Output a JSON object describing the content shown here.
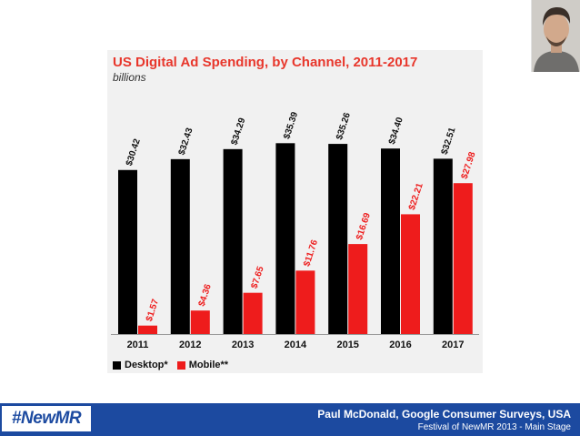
{
  "speaker_photo": {
    "alt": "speaker headshot"
  },
  "chart_data": {
    "type": "bar",
    "title": "US Digital Ad Spending, by Channel, 2011-2017",
    "subtitle": "billions",
    "xlabel": "",
    "ylabel": "",
    "categories": [
      "2011",
      "2012",
      "2013",
      "2014",
      "2015",
      "2016",
      "2017"
    ],
    "series": [
      {
        "name": "Desktop*",
        "color": "#000000",
        "values": [
          30.42,
          32.43,
          34.29,
          35.39,
          35.26,
          34.4,
          32.51
        ],
        "labels": [
          "$30.42",
          "$32.43",
          "$34.29",
          "$35.39",
          "$35.26",
          "$34.40",
          "$32.51"
        ]
      },
      {
        "name": "Mobile**",
        "color": "#ee1c1c",
        "values": [
          1.57,
          4.36,
          7.65,
          11.76,
          16.69,
          22.21,
          27.98
        ],
        "labels": [
          "$1.57",
          "$4.36",
          "$7.65",
          "$11.76",
          "$16.69",
          "$22.21",
          "$27.98"
        ]
      }
    ],
    "ylim": [
      0,
      40
    ],
    "grid": false,
    "legend_position": "bottom-left"
  },
  "footer": {
    "logo": "#NewMR",
    "speaker": "Paul McDonald, Google Consumer Surveys, USA",
    "event": "Festival of NewMR 2013 - Main Stage"
  },
  "colors": {
    "footer_bg": "#1c4aa0",
    "title_red": "#e8372c",
    "panel_bg": "#f1f1f1"
  }
}
